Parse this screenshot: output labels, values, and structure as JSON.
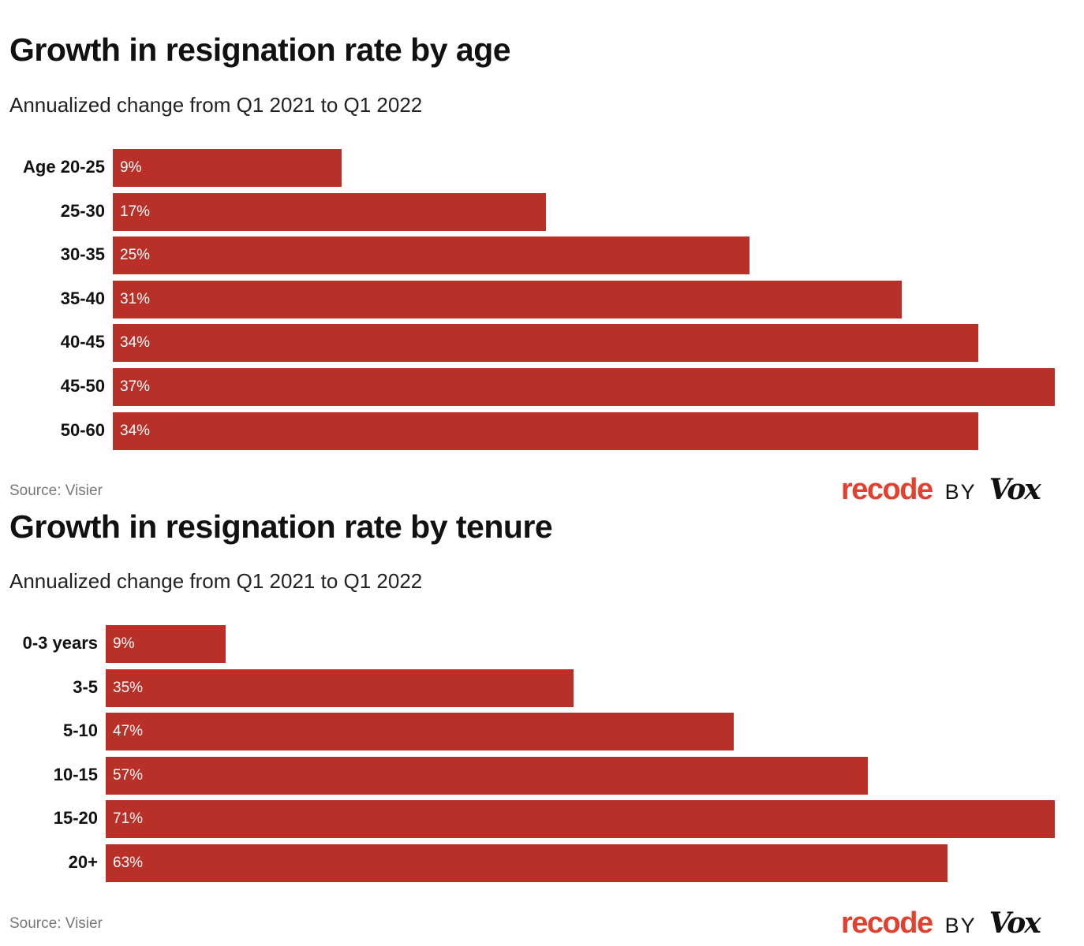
{
  "chart_data": [
    {
      "type": "bar",
      "orientation": "horizontal",
      "title": "Growth in resignation rate by age",
      "subtitle": "Annualized change from Q1 2021 to Q1 2022",
      "categories": [
        "Age 20-25",
        "25-30",
        "30-35",
        "35-40",
        "40-45",
        "45-50",
        "50-60"
      ],
      "values": [
        9,
        17,
        25,
        31,
        34,
        37,
        34
      ],
      "labels": [
        "9%",
        "17%",
        "25%",
        "31%",
        "34%",
        "37%",
        "34%"
      ],
      "source": "Source: Visier",
      "color": "#b83028"
    },
    {
      "type": "bar",
      "orientation": "horizontal",
      "title": "Growth in resignation rate by tenure",
      "subtitle": "Annualized change from Q1 2021 to Q1 2022",
      "categories": [
        "0-3 years",
        "3-5",
        "5-10",
        "10-15",
        "15-20",
        "20+"
      ],
      "values": [
        9,
        35,
        47,
        57,
        71,
        63
      ],
      "labels": [
        "9%",
        "35%",
        "47%",
        "57%",
        "71%",
        "63%"
      ],
      "source": "Source: Visier",
      "color": "#b83028"
    }
  ],
  "logo": {
    "brand": "recode",
    "by": "BY",
    "vox": "Vox"
  }
}
